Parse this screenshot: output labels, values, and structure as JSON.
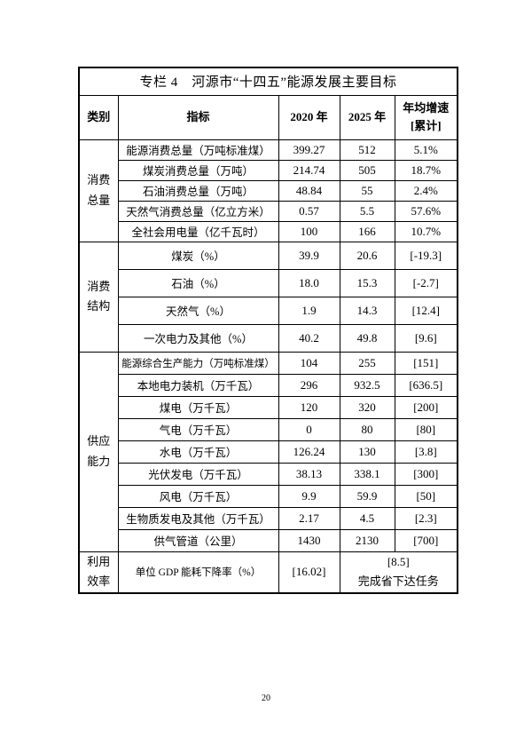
{
  "page": {
    "number": "20"
  },
  "table": {
    "title": "专栏 4　河源市“十四五”能源发展主要目标",
    "headers": [
      "类别",
      "指标",
      "2020 年",
      "2025 年",
      "年均增速\n[累计]"
    ],
    "groups": [
      {
        "name": "消费\n总量",
        "rows": [
          {
            "indicator": "能源消费总量（万吨标准煤）",
            "y2020": "399.27",
            "y2025": "512",
            "growth": "5.1%"
          },
          {
            "indicator": "煤炭消费总量（万吨）",
            "y2020": "214.74",
            "y2025": "505",
            "growth": "18.7%"
          },
          {
            "indicator": "石油消费总量（万吨）",
            "y2020": "48.84",
            "y2025": "55",
            "growth": "2.4%"
          },
          {
            "indicator": "天然气消费总量（亿立方米）",
            "y2020": "0.57",
            "y2025": "5.5",
            "growth": "57.6%"
          },
          {
            "indicator": "全社会用电量（亿千瓦时）",
            "y2020": "100",
            "y2025": "166",
            "growth": "10.7%"
          }
        ]
      },
      {
        "name": "消费\n结构",
        "rows": [
          {
            "indicator": "煤炭（%）",
            "y2020": "39.9",
            "y2025": "20.6",
            "growth": "[-19.3]"
          },
          {
            "indicator": "石油（%）",
            "y2020": "18.0",
            "y2025": "15.3",
            "growth": "[-2.7]"
          },
          {
            "indicator": "天然气（%）",
            "y2020": "1.9",
            "y2025": "14.3",
            "growth": "[12.4]"
          },
          {
            "indicator": "一次电力及其他（%）",
            "y2020": "40.2",
            "y2025": "49.8",
            "growth": "[9.6]"
          }
        ]
      },
      {
        "name": "供应\n能力",
        "rows": [
          {
            "indicator": "能源综合生产能力（万吨标准煤）",
            "y2020": "104",
            "y2025": "255",
            "growth": "[151]"
          },
          {
            "indicator": "本地电力装机（万千瓦）",
            "y2020": "296",
            "y2025": "932.5",
            "growth": "[636.5]"
          },
          {
            "indicator": "煤电（万千瓦）",
            "y2020": "120",
            "y2025": "320",
            "growth": "[200]"
          },
          {
            "indicator": "气电（万千瓦）",
            "y2020": "0",
            "y2025": "80",
            "growth": "[80]"
          },
          {
            "indicator": "水电（万千瓦）",
            "y2020": "126.24",
            "y2025": "130",
            "growth": "[3.8]"
          },
          {
            "indicator": "光伏发电（万千瓦）",
            "y2020": "38.13",
            "y2025": "338.1",
            "growth": "[300]"
          },
          {
            "indicator": "风电（万千瓦）",
            "y2020": "9.9",
            "y2025": "59.9",
            "growth": "[50]"
          },
          {
            "indicator": "生物质发电及其他（万千瓦）",
            "y2020": "2.17",
            "y2025": "4.5",
            "growth": "[2.3]"
          },
          {
            "indicator": "供气管道（公里）",
            "y2020": "1430",
            "y2025": "2130",
            "growth": "[700]"
          }
        ]
      },
      {
        "name": "利用\n效率",
        "rows": [
          {
            "indicator": "单位 GDP 能耗下降率（%）",
            "y2020": "[16.02]",
            "merged": "[8.5]\n完成省下达任务"
          }
        ]
      }
    ]
  }
}
